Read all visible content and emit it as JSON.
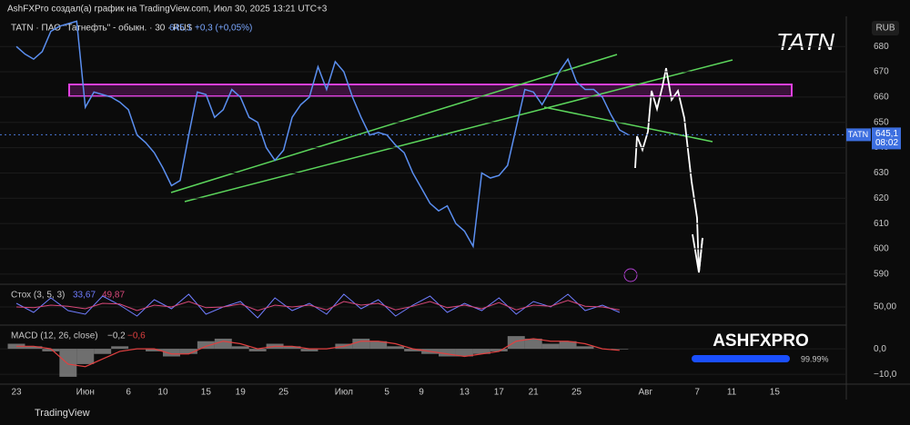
{
  "header": {
    "text": "AshFXPro создал(а) график на TradingView.com, Июл 30, 2025 13:21 UTC+3"
  },
  "footer": {
    "text": "TradingView"
  },
  "overlay": {
    "watermark": "TATN",
    "logo": "ASHFXPRO",
    "progress": "99.99%"
  },
  "chart_data": [
    {
      "type": "line",
      "title": "TATN · ПАО \"Татнефть\" - обыкн. · 30 · RUS",
      "change": "+0,3 (+0,05%)",
      "currency": "RUB",
      "last_symbol": "TATN",
      "last_value": {
        "value": 645.1,
        "label": "645,1"
      },
      "last_time": "08:02",
      "categories": [
        "23",
        null,
        null,
        null,
        null,
        null,
        null,
        null,
        "Июн",
        null,
        null,
        null,
        null,
        "6",
        null,
        null,
        null,
        "10",
        null,
        null,
        null,
        null,
        "15",
        null,
        null,
        null,
        "19",
        null,
        null,
        null,
        null,
        "25",
        null,
        null,
        null,
        null,
        null,
        null,
        "Июл",
        null,
        null,
        null,
        null,
        "5",
        null,
        null,
        null,
        "9",
        null,
        null,
        null,
        null,
        "13",
        null,
        null,
        null,
        "17",
        null,
        null,
        null,
        "21",
        null,
        null,
        null,
        null,
        "25",
        null,
        null,
        null,
        null,
        null,
        null,
        null,
        "Авг",
        null,
        null,
        null,
        null,
        null,
        "7",
        null,
        null,
        null,
        "11",
        null,
        null,
        null,
        null,
        "15"
      ],
      "series": [
        {
          "color": "#5b8ff0",
          "values": [
            680,
            677,
            675,
            678,
            686,
            688,
            689,
            690,
            656,
            662,
            661,
            660,
            658,
            655,
            645,
            642,
            638,
            632,
            625,
            627,
            645,
            662,
            661,
            652,
            655,
            663,
            660,
            652,
            650,
            640,
            635,
            639,
            652,
            657,
            660,
            672,
            663,
            674,
            670,
            660,
            652,
            645,
            646,
            645,
            641,
            638,
            630,
            624,
            618,
            615,
            617,
            610,
            607,
            601,
            630,
            628,
            629,
            633,
            648,
            663,
            662,
            657,
            663,
            670,
            675,
            666,
            663,
            663,
            660,
            653,
            647,
            645.1,
            null,
            null,
            null,
            null,
            null,
            null,
            null,
            null,
            null,
            null,
            null,
            null,
            null,
            null,
            null,
            null,
            null
          ]
        }
      ],
      "ylim": [
        586,
        693
      ],
      "yticks": [
        680,
        670,
        660,
        650,
        640,
        630,
        620,
        610,
        600,
        590
      ]
    },
    {
      "type": "line",
      "title": "Стох (3, 5, 3)",
      "legend_values": [
        "33,67",
        "49,87"
      ],
      "series": [
        {
          "color": "#6f7dff",
          "values": [
            60,
            35,
            75,
            40,
            30,
            80,
            55,
            25,
            70,
            45,
            85,
            30,
            50,
            65,
            20,
            75,
            40,
            60,
            30,
            85,
            45,
            70,
            25,
            55,
            80,
            35,
            60,
            40,
            75,
            30,
            65,
            50,
            85,
            40,
            55,
            35
          ]
        },
        {
          "color": "#d9487a",
          "values": [
            50,
            48,
            55,
            52,
            45,
            60,
            58,
            40,
            55,
            50,
            65,
            48,
            50,
            58,
            40,
            55,
            50,
            55,
            42,
            65,
            55,
            60,
            42,
            52,
            65,
            48,
            55,
            45,
            62,
            42,
            55,
            52,
            68,
            52,
            50,
            42
          ]
        }
      ],
      "ylim": [
        0,
        100
      ],
      "yticks": [
        {
          "value": 50,
          "label": "50,00"
        }
      ]
    },
    {
      "type": "area",
      "title": "MACD (12, 26, close)",
      "legend_values": [
        "−0,2",
        "−0,6"
      ],
      "series": [
        {
          "color": "#9a9a9a",
          "values": [
            2,
            1,
            -1,
            -11,
            -6,
            -2,
            1,
            0,
            -1,
            -3,
            -2,
            3,
            4,
            1,
            -1,
            2,
            1,
            -1,
            0,
            2,
            4,
            3,
            1,
            -1,
            -2,
            -3,
            -3,
            -2,
            -1,
            5,
            4,
            2,
            3,
            1,
            0,
            -0.2
          ]
        },
        {
          "color": "#e04040",
          "values": [
            1,
            1,
            0,
            -6,
            -7,
            -4,
            -1,
            0,
            0,
            -2,
            -2,
            1,
            3,
            2,
            0,
            1,
            1,
            0,
            0,
            1,
            3,
            3,
            2,
            0,
            -1,
            -2,
            -3,
            -2,
            -1,
            3,
            4,
            3,
            3,
            2,
            0,
            -0.6
          ]
        }
      ],
      "ylim": [
        -14.6,
        7.9
      ],
      "yticks": [
        {
          "value": 0,
          "label": "0,0"
        },
        {
          "value": -10,
          "label": "−10,0"
        }
      ]
    }
  ]
}
